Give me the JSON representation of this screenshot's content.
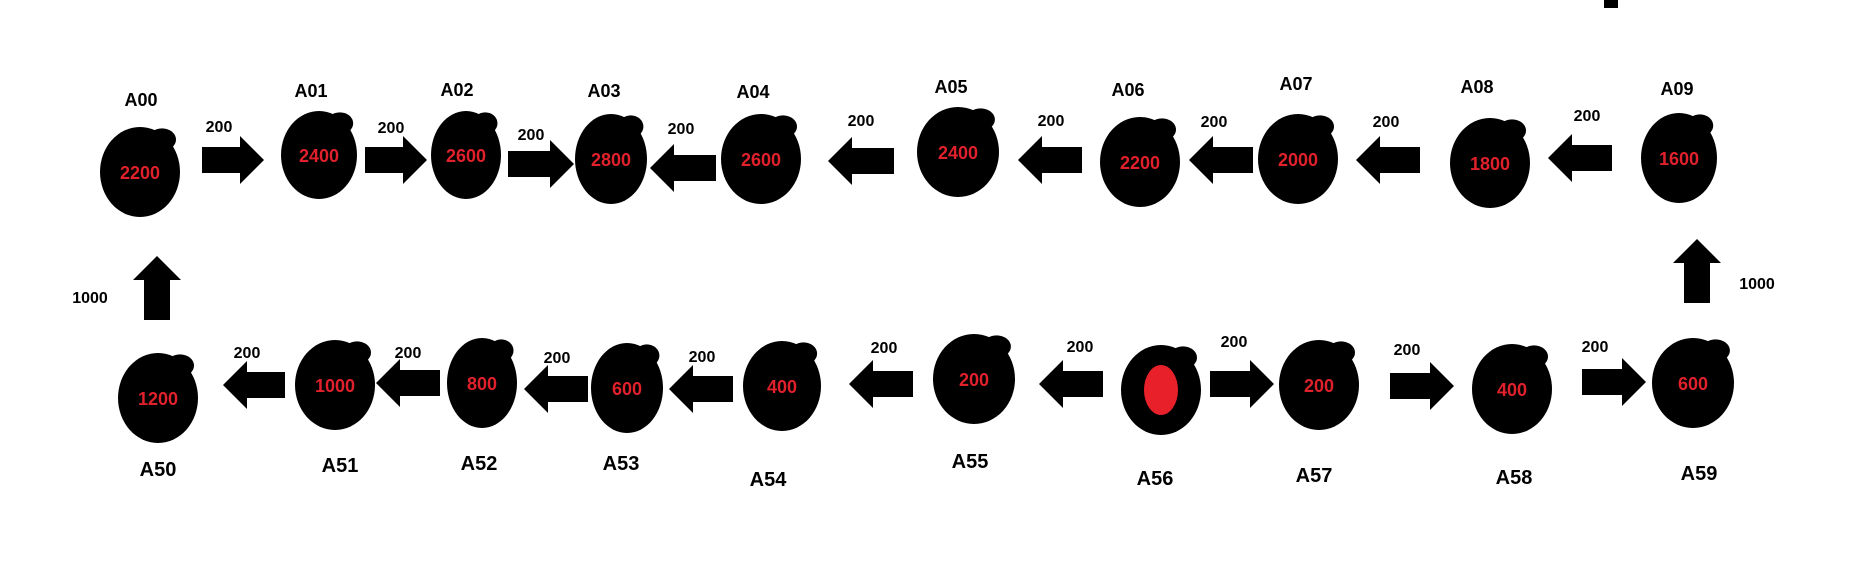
{
  "colors": {
    "node_fill": "#000000",
    "value_text": "#e0202a",
    "arrow_fill": "#000000",
    "start_dot": "#e8202a"
  },
  "nodes": [
    {
      "id": "A00",
      "label": "A00",
      "value": "2200"
    },
    {
      "id": "A01",
      "label": "A01",
      "value": "2400"
    },
    {
      "id": "A02",
      "label": "A02",
      "value": "2600"
    },
    {
      "id": "A03",
      "label": "A03",
      "value": "2800"
    },
    {
      "id": "A04",
      "label": "A04",
      "value": "2600"
    },
    {
      "id": "A05",
      "label": "A05",
      "value": "2400"
    },
    {
      "id": "A06",
      "label": "A06",
      "value": "2200"
    },
    {
      "id": "A07",
      "label": "A07",
      "value": "2000"
    },
    {
      "id": "A08",
      "label": "A08",
      "value": "1800"
    },
    {
      "id": "A09",
      "label": "A09",
      "value": "1600"
    },
    {
      "id": "A50",
      "label": "A50",
      "value": "1200"
    },
    {
      "id": "A51",
      "label": "A51",
      "value": "1000"
    },
    {
      "id": "A52",
      "label": "A52",
      "value": "800"
    },
    {
      "id": "A53",
      "label": "A53",
      "value": "600"
    },
    {
      "id": "A54",
      "label": "A54",
      "value": "400"
    },
    {
      "id": "A55",
      "label": "A55",
      "value": "200"
    },
    {
      "id": "A56",
      "label": "A56",
      "value": ""
    },
    {
      "id": "A57",
      "label": "A57",
      "value": "200"
    },
    {
      "id": "A58",
      "label": "A58",
      "value": "400"
    },
    {
      "id": "A59",
      "label": "A59",
      "value": "600"
    }
  ],
  "edges": [
    {
      "from": "A00",
      "to": "A01",
      "weight": "200"
    },
    {
      "from": "A01",
      "to": "A02",
      "weight": "200"
    },
    {
      "from": "A02",
      "to": "A03",
      "weight": "200"
    },
    {
      "from": "A04",
      "to": "A03",
      "weight": "200"
    },
    {
      "from": "A05",
      "to": "A04",
      "weight": "200"
    },
    {
      "from": "A06",
      "to": "A05",
      "weight": "200"
    },
    {
      "from": "A07",
      "to": "A06",
      "weight": "200"
    },
    {
      "from": "A08",
      "to": "A07",
      "weight": "200"
    },
    {
      "from": "A09",
      "to": "A08",
      "weight": "200"
    },
    {
      "from": "A50",
      "to": "A00",
      "weight": "1000"
    },
    {
      "from": "A59",
      "to": "A09",
      "weight": "1000"
    },
    {
      "from": "A51",
      "to": "A50",
      "weight": "200"
    },
    {
      "from": "A52",
      "to": "A51",
      "weight": "200"
    },
    {
      "from": "A53",
      "to": "A52",
      "weight": "200"
    },
    {
      "from": "A54",
      "to": "A53",
      "weight": "200"
    },
    {
      "from": "A55",
      "to": "A54",
      "weight": "200"
    },
    {
      "from": "A56",
      "to": "A55",
      "weight": "200"
    },
    {
      "from": "A56",
      "to": "A57",
      "weight": "200"
    },
    {
      "from": "A57",
      "to": "A58",
      "weight": "200"
    },
    {
      "from": "A58",
      "to": "A59",
      "weight": "200"
    }
  ]
}
